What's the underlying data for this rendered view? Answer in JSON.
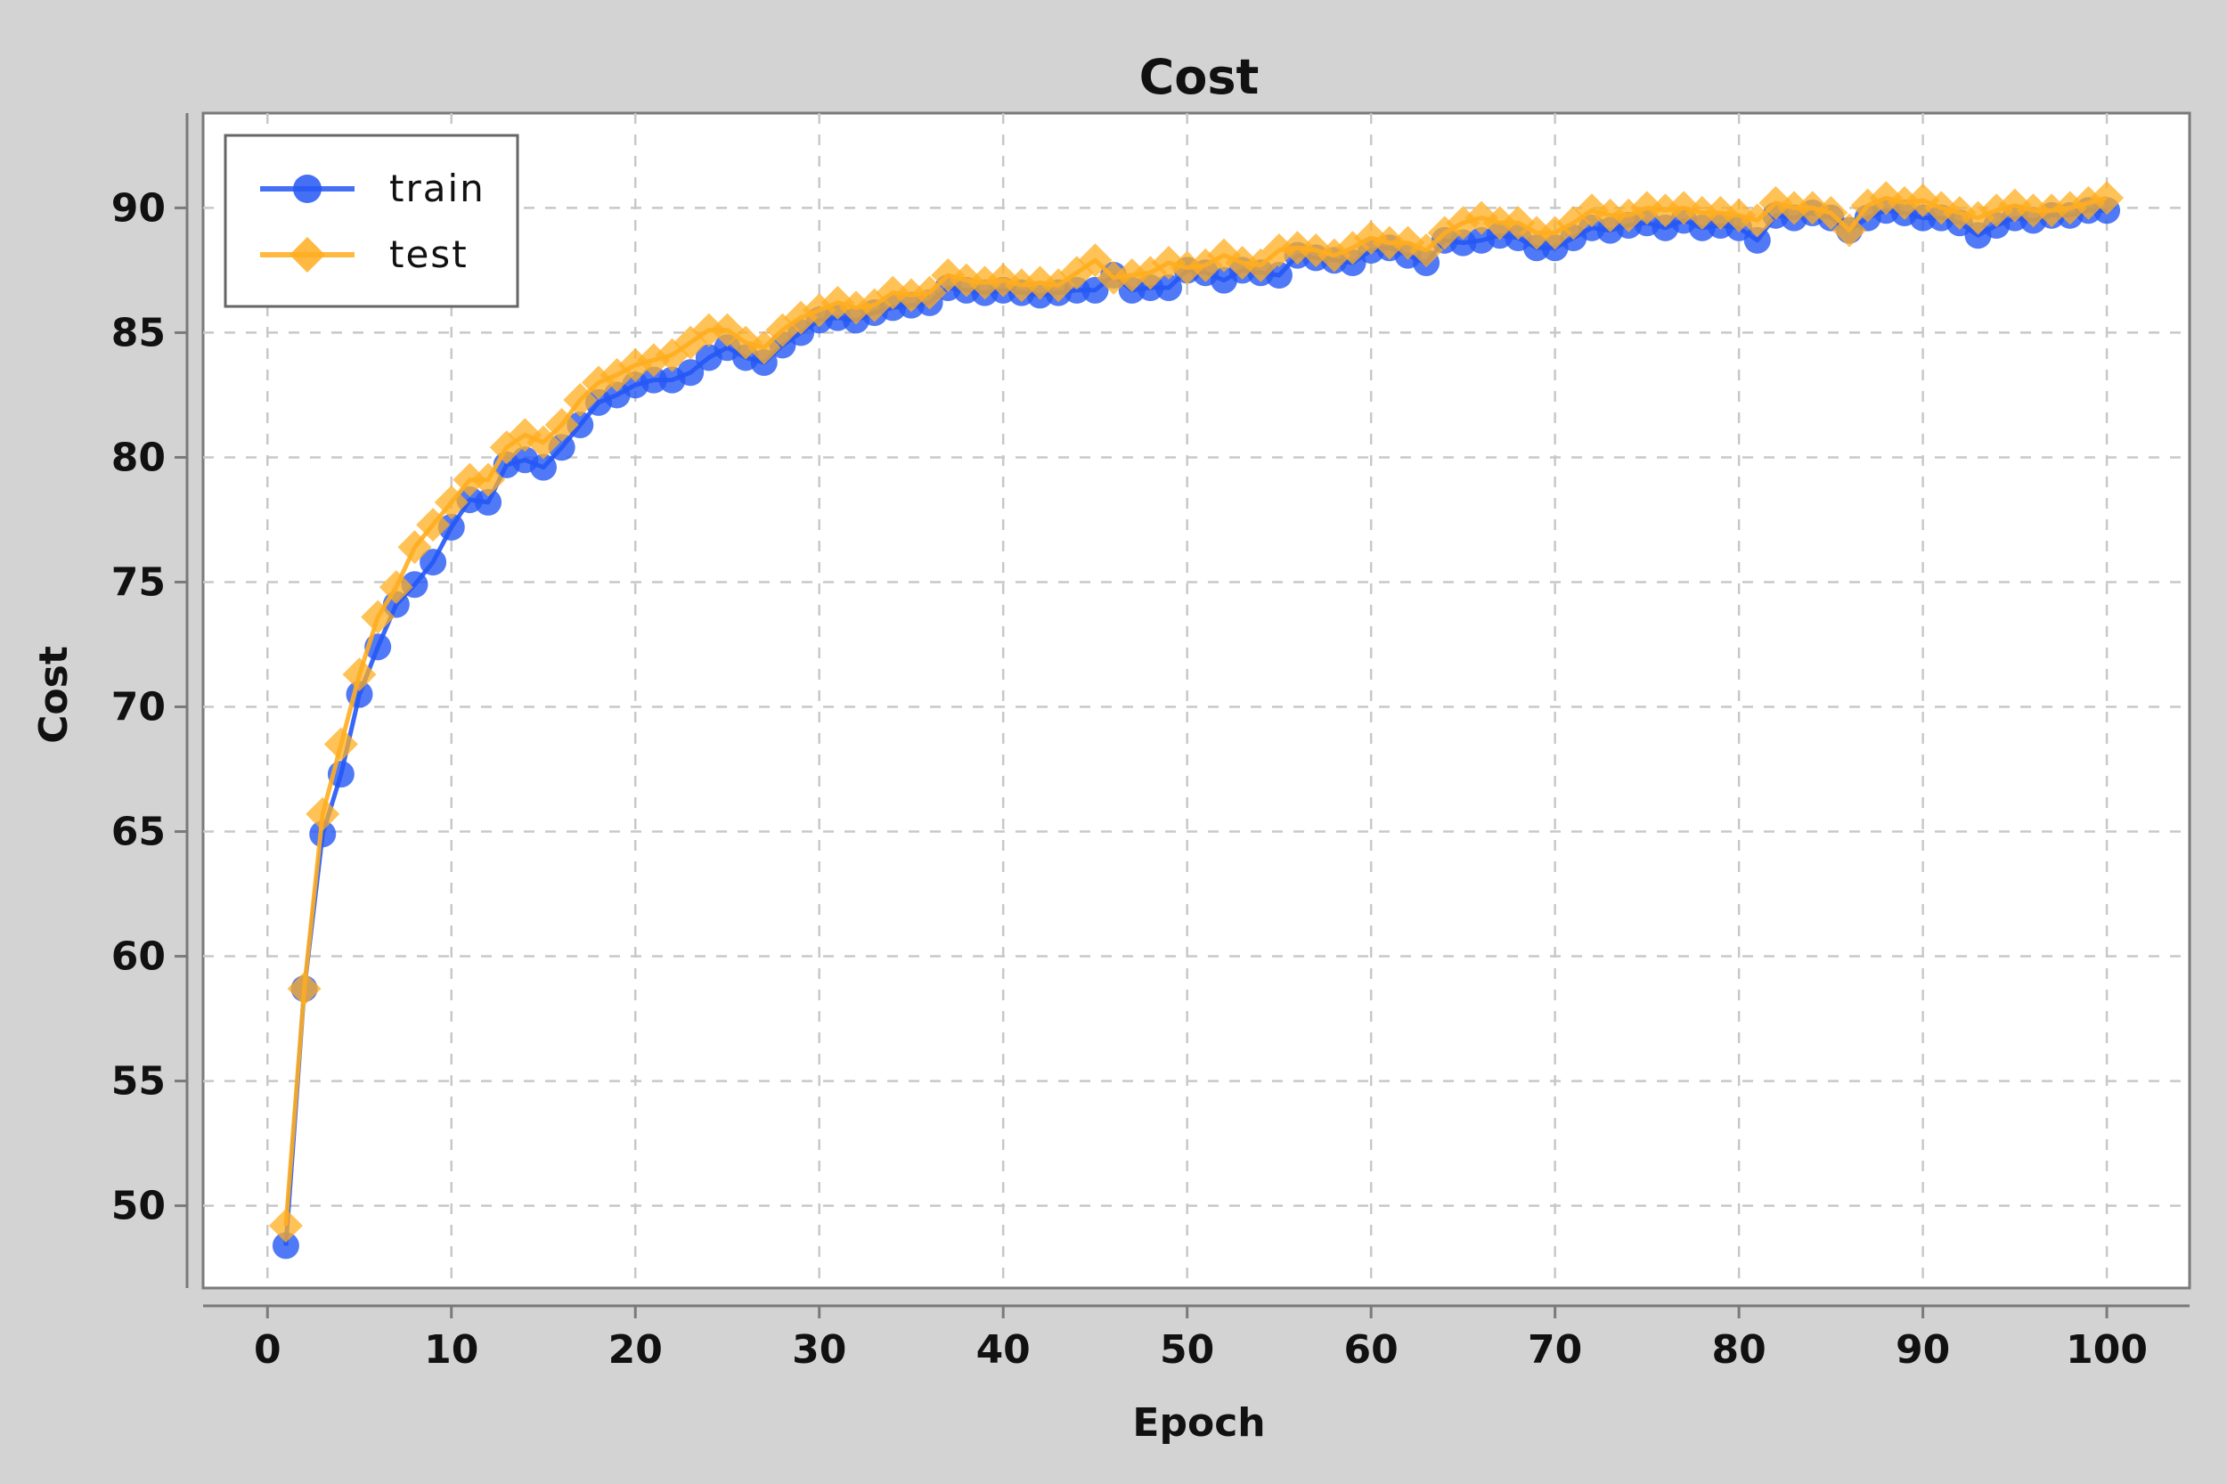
{
  "chart_data": {
    "type": "line",
    "title": "Cost",
    "xlabel": "Epoch",
    "ylabel": "Cost",
    "xlim": [
      -3.5,
      104.5
    ],
    "ylim": [
      46.7,
      93.8
    ],
    "xticks": [
      0,
      10,
      20,
      30,
      40,
      50,
      60,
      70,
      80,
      90,
      100
    ],
    "yticks": [
      50,
      55,
      60,
      65,
      70,
      75,
      80,
      85,
      90
    ],
    "grid": true,
    "legend_position": "top-left",
    "x": [
      1,
      2,
      3,
      4,
      5,
      6,
      7,
      8,
      9,
      10,
      11,
      12,
      13,
      14,
      15,
      16,
      17,
      18,
      19,
      20,
      21,
      22,
      23,
      24,
      25,
      26,
      27,
      28,
      29,
      30,
      31,
      32,
      33,
      34,
      35,
      36,
      37,
      38,
      39,
      40,
      41,
      42,
      43,
      44,
      45,
      46,
      47,
      48,
      49,
      50,
      51,
      52,
      53,
      54,
      55,
      56,
      57,
      58,
      59,
      60,
      61,
      62,
      63,
      64,
      65,
      66,
      67,
      68,
      69,
      70,
      71,
      72,
      73,
      74,
      75,
      76,
      77,
      78,
      79,
      80,
      81,
      82,
      83,
      84,
      85,
      86,
      87,
      88,
      89,
      90,
      91,
      92,
      93,
      94,
      95,
      96,
      97,
      98,
      99,
      100
    ],
    "series": [
      {
        "name": "train",
        "color": "#2457f5",
        "marker": "circle",
        "values": [
          48.4,
          58.7,
          64.9,
          67.3,
          70.5,
          72.4,
          74.1,
          74.9,
          75.8,
          77.2,
          78.3,
          78.2,
          79.7,
          79.9,
          79.6,
          80.4,
          81.3,
          82.2,
          82.5,
          82.9,
          83.1,
          83.1,
          83.4,
          84.0,
          84.4,
          84.0,
          83.8,
          84.5,
          85.0,
          85.5,
          85.6,
          85.5,
          85.8,
          86.0,
          86.1,
          86.2,
          86.8,
          86.7,
          86.6,
          86.7,
          86.6,
          86.5,
          86.6,
          86.7,
          86.7,
          87.3,
          86.7,
          86.8,
          86.8,
          87.5,
          87.4,
          87.1,
          87.5,
          87.4,
          87.3,
          88.1,
          88.0,
          87.9,
          87.8,
          88.3,
          88.4,
          88.1,
          87.8,
          88.7,
          88.6,
          88.7,
          88.9,
          88.8,
          88.4,
          88.4,
          88.8,
          89.2,
          89.1,
          89.3,
          89.4,
          89.2,
          89.5,
          89.2,
          89.3,
          89.2,
          88.7,
          89.7,
          89.6,
          89.8,
          89.6,
          89.1,
          89.6,
          89.9,
          89.8,
          89.6,
          89.6,
          89.4,
          88.9,
          89.3,
          89.6,
          89.5,
          89.7,
          89.7,
          89.9,
          89.9
        ]
      },
      {
        "name": "test",
        "color": "#ffad1f",
        "marker": "diamond",
        "values": [
          49.2,
          58.7,
          65.7,
          68.5,
          71.3,
          73.6,
          74.8,
          76.4,
          77.3,
          78.2,
          79.1,
          79.1,
          80.4,
          80.9,
          80.6,
          81.3,
          82.3,
          83.0,
          83.3,
          83.7,
          83.9,
          84.1,
          84.6,
          85.1,
          85.1,
          84.6,
          84.4,
          85.1,
          85.6,
          85.9,
          86.2,
          86.0,
          86.1,
          86.6,
          86.5,
          86.6,
          87.3,
          87.1,
          87.0,
          87.1,
          86.9,
          87.0,
          86.9,
          87.4,
          87.9,
          87.2,
          87.3,
          87.4,
          87.8,
          87.6,
          87.7,
          88.1,
          87.8,
          87.7,
          88.3,
          88.4,
          88.3,
          88.1,
          88.4,
          88.8,
          88.6,
          88.6,
          88.3,
          89.0,
          89.4,
          89.6,
          89.4,
          89.4,
          89.0,
          89.0,
          89.4,
          89.9,
          89.7,
          89.7,
          90.0,
          89.9,
          90.0,
          89.8,
          89.8,
          89.7,
          89.5,
          90.2,
          90.0,
          90.0,
          89.8,
          89.1,
          90.1,
          90.4,
          90.2,
          90.3,
          90.0,
          89.8,
          89.6,
          89.9,
          90.1,
          89.9,
          89.9,
          90.0,
          90.2,
          90.4
        ]
      }
    ]
  }
}
